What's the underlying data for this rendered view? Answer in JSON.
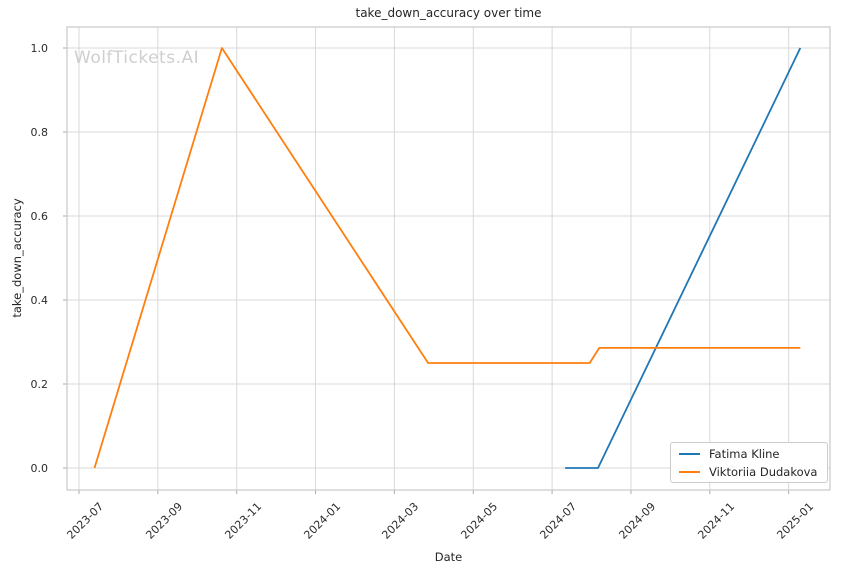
{
  "watermark": "WolfTickets.AI",
  "chart_data": {
    "type": "line",
    "title": "take_down_accuracy over time",
    "xlabel": "Date",
    "ylabel": "take_down_accuracy",
    "x_tick_labels": [
      "2023-07",
      "2023-09",
      "2023-11",
      "2024-01",
      "2024-03",
      "2024-05",
      "2024-07",
      "2024-09",
      "2024-11",
      "2025-01"
    ],
    "y_tick_labels": [
      "0.0",
      "0.2",
      "0.4",
      "0.6",
      "0.8",
      "1.0"
    ],
    "ylim": [
      -0.05,
      1.05
    ],
    "grid": true,
    "legend_position": "lower right",
    "series": [
      {
        "name": "Fatima Kline",
        "color": "#1f77b4",
        "points": [
          {
            "date": "2024-07-11",
            "value": 0.0
          },
          {
            "date": "2024-08-06",
            "value": 0.0
          },
          {
            "date": "2025-01-10",
            "value": 1.0
          }
        ]
      },
      {
        "name": "Viktoriia Dudakova",
        "color": "#ff7f0e",
        "points": [
          {
            "date": "2023-07-13",
            "value": 0.0
          },
          {
            "date": "2023-10-20",
            "value": 1.0
          },
          {
            "date": "2024-03-27",
            "value": 0.25
          },
          {
            "date": "2024-07-30",
            "value": 0.25
          },
          {
            "date": "2024-08-07",
            "value": 0.286
          },
          {
            "date": "2025-01-10",
            "value": 0.286
          }
        ]
      }
    ]
  }
}
